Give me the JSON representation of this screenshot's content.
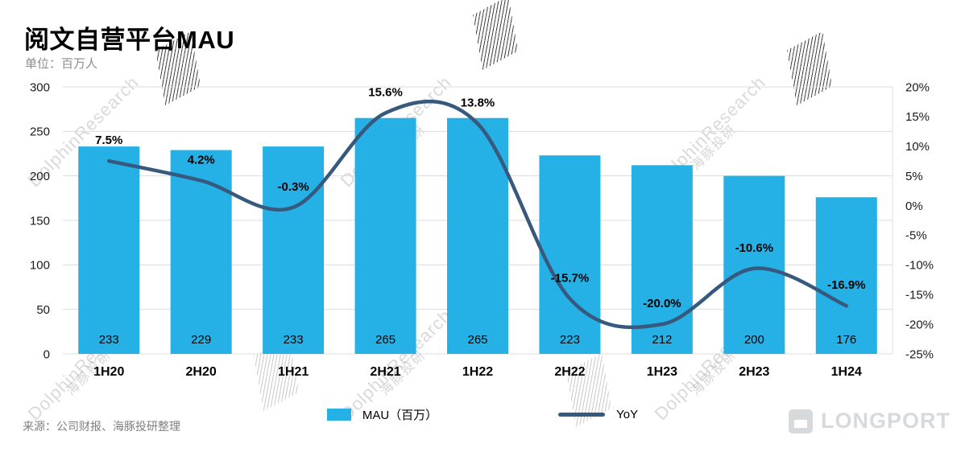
{
  "page": {
    "title": "阅文自营平台MAU",
    "subtitle": "单位：百万人",
    "source": "来源：公司财报、海豚投研整理",
    "watermark_text": "DolphinResearch",
    "watermark_cn": "海豚投研",
    "brand": "LONGPORT"
  },
  "legend": {
    "mau": "MAU（百万）",
    "yoy": "YoY"
  },
  "colors": {
    "bar": "#25b1e6",
    "line": "#37597d",
    "grid": "#dcdcdc",
    "axis_text": "#1a1a1a",
    "label_text": "#000000"
  },
  "chart_data": {
    "type": "bar+line",
    "title": "阅文自营平台MAU",
    "unit": "百万人",
    "categories": [
      "1H20",
      "2H20",
      "1H21",
      "2H21",
      "1H22",
      "2H22",
      "1H23",
      "2H23",
      "1H24"
    ],
    "series": [
      {
        "name": "MAU（百万）",
        "type": "bar",
        "axis": "left",
        "values": [
          233,
          229,
          233,
          265,
          265,
          223,
          212,
          200,
          176
        ]
      },
      {
        "name": "YoY",
        "type": "line",
        "axis": "right",
        "values": [
          7.5,
          4.2,
          -0.3,
          15.6,
          13.8,
          -15.7,
          -20.0,
          -10.6,
          -16.9
        ],
        "labels": [
          "7.5%",
          "4.2%",
          "-0.3%",
          "15.6%",
          "13.8%",
          "-15.7%",
          "-20.0%",
          "-10.6%",
          "-16.9%"
        ]
      }
    ],
    "left_axis": {
      "min": 0,
      "max": 300,
      "step": 50,
      "ticks": [
        "300",
        "250",
        "200",
        "150",
        "100",
        "50",
        "0"
      ]
    },
    "right_axis": {
      "min": -25,
      "max": 20,
      "step": 5,
      "ticks": [
        "20%",
        "15%",
        "10%",
        "5%",
        "0%",
        "-5%",
        "-10%",
        "-15%",
        "-20%",
        "-25%"
      ]
    },
    "grid": true,
    "legend_position": "bottom"
  }
}
